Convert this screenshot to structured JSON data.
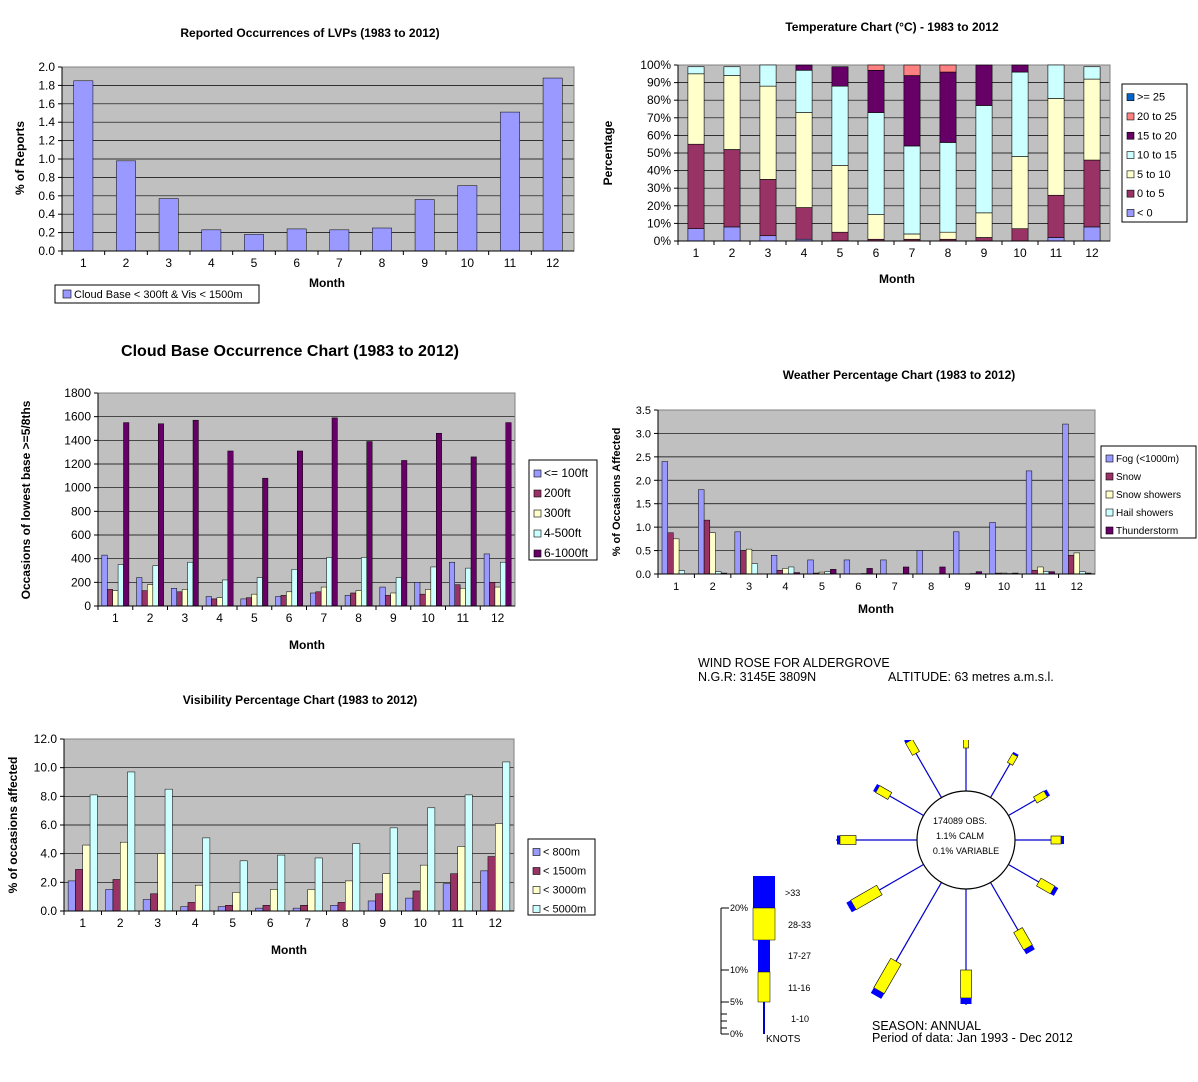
{
  "chart_data": [
    {
      "id": "lvp",
      "type": "bar",
      "title": "Reported Occurrences of LVPs (1983 to 2012)",
      "xlabel": "Month",
      "ylabel": "% of Reports",
      "categories": [
        "1",
        "2",
        "3",
        "4",
        "5",
        "6",
        "7",
        "8",
        "9",
        "10",
        "11",
        "12"
      ],
      "ylim": [
        0,
        2.0
      ],
      "yticks": [
        "0.0",
        "0.2",
        "0.4",
        "0.6",
        "0.8",
        "1.0",
        "1.2",
        "1.4",
        "1.6",
        "1.8",
        "2.0"
      ],
      "series": [
        {
          "name": "Cloud Base < 300ft & Vis < 1500m",
          "color": "#9999ff",
          "values": [
            1.85,
            0.98,
            0.57,
            0.23,
            0.18,
            0.24,
            0.23,
            0.25,
            0.56,
            0.71,
            1.51,
            1.88
          ]
        }
      ],
      "legend": "bottom-left",
      "grid": true
    },
    {
      "id": "temp",
      "type": "bar",
      "stacked": true,
      "title": "Temperature Chart (°C) - 1983 to 2012",
      "xlabel": "Month",
      "ylabel": "Percentage",
      "categories": [
        "1",
        "2",
        "3",
        "4",
        "5",
        "6",
        "7",
        "8",
        "9",
        "10",
        "11",
        "12"
      ],
      "ylim": [
        0,
        100
      ],
      "yticks": [
        "0%",
        "10%",
        "20%",
        "30%",
        "40%",
        "50%",
        "60%",
        "70%",
        "80%",
        "90%",
        "100%"
      ],
      "series": [
        {
          "name": "< 0",
          "color": "#9999ff",
          "values": [
            7,
            8,
            3,
            1,
            0,
            0,
            0,
            0,
            0,
            0,
            2,
            8
          ]
        },
        {
          "name": "0 to 5",
          "color": "#993366",
          "values": [
            48,
            44,
            32,
            18,
            5,
            1,
            1,
            1,
            2,
            7,
            24,
            38
          ]
        },
        {
          "name": "5 to 10",
          "color": "#ffffcc",
          "values": [
            40,
            42,
            53,
            54,
            38,
            14,
            3,
            4,
            14,
            41,
            55,
            46
          ]
        },
        {
          "name": "10 to 15",
          "color": "#ccffff",
          "values": [
            4,
            5,
            12,
            24,
            45,
            58,
            50,
            51,
            61,
            48,
            19,
            7
          ]
        },
        {
          "name": "15 to 20",
          "color": "#660066",
          "values": [
            0,
            0,
            0,
            3,
            11,
            24,
            40,
            40,
            23,
            4,
            0,
            0
          ]
        },
        {
          "name": "20 to 25",
          "color": "#ff8080",
          "values": [
            0,
            0,
            0,
            0,
            0,
            3,
            6,
            4,
            0,
            0,
            0,
            0
          ]
        },
        {
          "name": ">= 25",
          "color": "#0066cc",
          "values": [
            0,
            0,
            0,
            0,
            0,
            0,
            0,
            0,
            0,
            0,
            0,
            0
          ]
        }
      ],
      "legend": "right",
      "grid": true
    },
    {
      "id": "cloud",
      "type": "bar",
      "title": "Cloud Base Occurrence Chart (1983 to 2012)",
      "xlabel": "Month",
      "ylabel": "Occasions of lowest base >=5/8ths",
      "categories": [
        "1",
        "2",
        "3",
        "4",
        "5",
        "6",
        "7",
        "8",
        "9",
        "10",
        "11",
        "12"
      ],
      "ylim": [
        0,
        1800
      ],
      "yticks": [
        "0",
        "200",
        "400",
        "600",
        "800",
        "1000",
        "1200",
        "1400",
        "1600",
        "1800"
      ],
      "series": [
        {
          "name": "<= 100ft",
          "color": "#9999ff",
          "values": [
            430,
            240,
            150,
            80,
            60,
            80,
            110,
            90,
            160,
            200,
            370,
            440
          ]
        },
        {
          "name": "200ft",
          "color": "#993366",
          "values": [
            140,
            130,
            120,
            60,
            70,
            90,
            120,
            110,
            90,
            100,
            180,
            200
          ]
        },
        {
          "name": "300ft",
          "color": "#ffffcc",
          "values": [
            130,
            180,
            140,
            70,
            100,
            120,
            160,
            130,
            110,
            140,
            150,
            160
          ]
        },
        {
          "name": "4-500ft",
          "color": "#ccffff",
          "values": [
            350,
            340,
            370,
            220,
            240,
            310,
            410,
            410,
            240,
            330,
            320,
            370
          ]
        },
        {
          "name": "6-1000ft",
          "color": "#660066",
          "values": [
            1550,
            1540,
            1570,
            1310,
            1080,
            1310,
            1590,
            1390,
            1230,
            1460,
            1260,
            1550
          ]
        }
      ],
      "legend": "right",
      "grid": true
    },
    {
      "id": "weather",
      "type": "bar",
      "title": "Weather Percentage Chart (1983 to 2012)",
      "xlabel": "Month",
      "ylabel": "% of Occasions Affected",
      "categories": [
        "1",
        "2",
        "3",
        "4",
        "5",
        "6",
        "7",
        "8",
        "9",
        "10",
        "11",
        "12"
      ],
      "ylim": [
        0,
        3.5
      ],
      "yticks": [
        "0.0",
        "0.5",
        "1.0",
        "1.5",
        "2.0",
        "2.5",
        "3.0",
        "3.5"
      ],
      "series": [
        {
          "name": "Fog (<1000m)",
          "color": "#9999ff",
          "values": [
            2.4,
            1.8,
            0.9,
            0.4,
            0.3,
            0.3,
            0.3,
            0.5,
            0.9,
            1.1,
            2.2,
            3.2
          ]
        },
        {
          "name": "Snow",
          "color": "#993366",
          "values": [
            0.88,
            1.15,
            0.5,
            0.08,
            0.02,
            0,
            0,
            0,
            0,
            0.02,
            0.08,
            0.4
          ]
        },
        {
          "name": "Snow showers",
          "color": "#ffffcc",
          "values": [
            0.75,
            0.88,
            0.53,
            0.12,
            0.04,
            0,
            0,
            0,
            0,
            0.02,
            0.15,
            0.45
          ]
        },
        {
          "name": "Hail showers",
          "color": "#ccffff",
          "values": [
            0.07,
            0.05,
            0.22,
            0.15,
            0.05,
            0.01,
            0,
            0,
            0.01,
            0.01,
            0.05,
            0.05
          ]
        },
        {
          "name": "Thunderstorm",
          "color": "#660066",
          "values": [
            0,
            0.02,
            0,
            0.03,
            0.1,
            0.12,
            0.15,
            0.15,
            0.05,
            0.02,
            0.05,
            0.02
          ]
        }
      ],
      "legend": "right",
      "grid": true
    },
    {
      "id": "vis",
      "type": "bar",
      "title": "Visibility Percentage Chart (1983 to 2012)",
      "xlabel": "Month",
      "ylabel": "% of occasions affected",
      "categories": [
        "1",
        "2",
        "3",
        "4",
        "5",
        "6",
        "7",
        "8",
        "9",
        "10",
        "11",
        "12"
      ],
      "ylim": [
        0,
        12.0
      ],
      "yticks": [
        "0.0",
        "2.0",
        "4.0",
        "6.0",
        "8.0",
        "10.0",
        "12.0"
      ],
      "series": [
        {
          "name": "< 800m",
          "color": "#9999ff",
          "values": [
            2.1,
            1.5,
            0.8,
            0.3,
            0.3,
            0.2,
            0.2,
            0.4,
            0.7,
            0.9,
            1.9,
            2.8
          ]
        },
        {
          "name": "< 1500m",
          "color": "#993366",
          "values": [
            2.9,
            2.2,
            1.2,
            0.6,
            0.4,
            0.4,
            0.4,
            0.6,
            1.2,
            1.4,
            2.6,
            3.8
          ]
        },
        {
          "name": "< 3000m",
          "color": "#ffffcc",
          "values": [
            4.6,
            4.8,
            4.0,
            1.8,
            1.3,
            1.5,
            1.5,
            2.1,
            2.6,
            3.2,
            4.5,
            6.1
          ]
        },
        {
          "name": "< 5000m",
          "color": "#ccffff",
          "values": [
            8.1,
            9.7,
            8.5,
            5.1,
            3.5,
            3.9,
            3.7,
            4.7,
            5.8,
            7.2,
            8.1,
            10.4
          ]
        }
      ],
      "legend": "right",
      "grid": true
    }
  ],
  "windrose": {
    "title": "WIND ROSE FOR ALDERGROVE",
    "ngr": "N.G.R: 3145E 3809N",
    "altitude": "ALTITUDE:   63 metres a.m.s.l.",
    "center_lines": [
      "174089 OBS.",
      "1.1% CALM",
      "0.1% VARIABLE"
    ],
    "scale_ticks": [
      "20%",
      "10%",
      "5%",
      "0%"
    ],
    "speed_classes": [
      ">33",
      "28-33",
      "17-27",
      "11-16",
      "1-10"
    ],
    "units_label": "KNOTS",
    "colors": {
      "line": "#0000cc",
      "band_a": "#0000ff",
      "band_b": "#ffff00"
    },
    "season": "SEASON: ANNUAL",
    "period": "Period of data: Jan 1993 - Dec 2012"
  }
}
